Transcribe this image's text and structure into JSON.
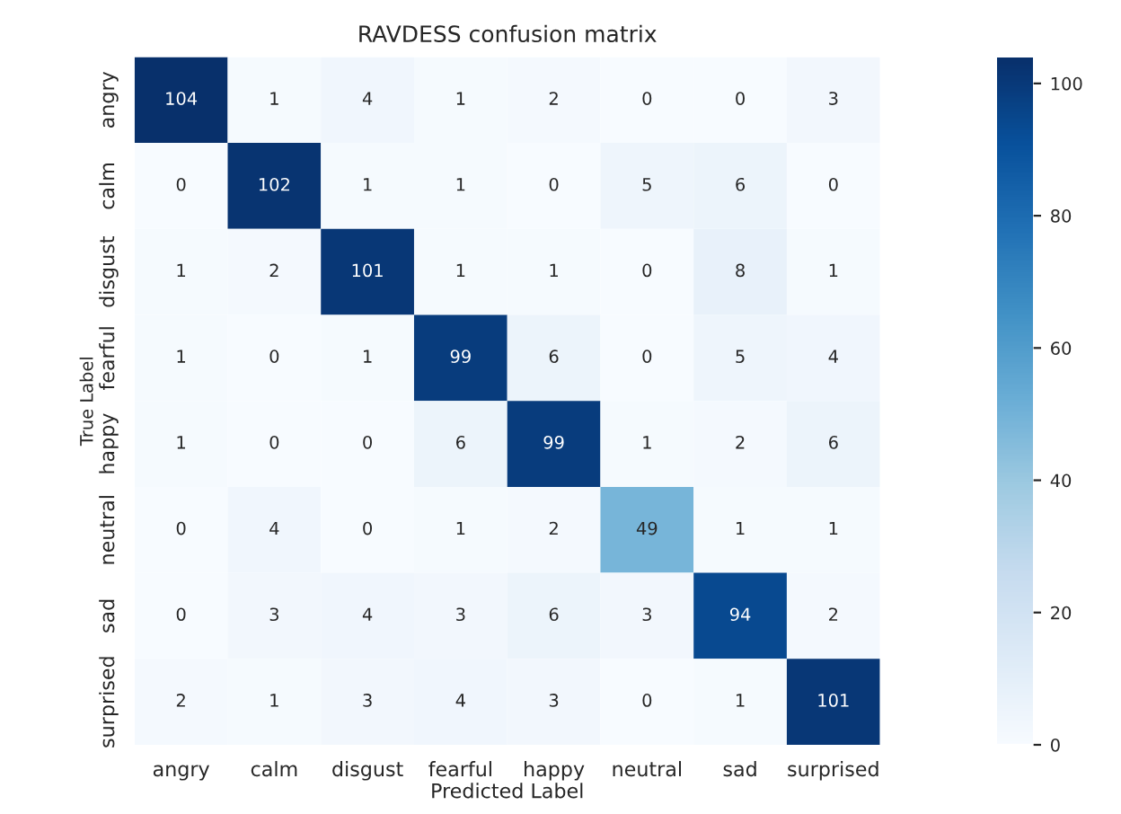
{
  "chart_data": {
    "type": "heatmap",
    "title": "RAVDESS confusion matrix",
    "xlabel": "Predicted Label",
    "ylabel": "True Label",
    "categories": [
      "angry",
      "calm",
      "disgust",
      "fearful",
      "happy",
      "neutral",
      "sad",
      "surprised"
    ],
    "y_categories": [
      "angry",
      "calm",
      "disgust",
      "fearful",
      "happy",
      "neutral",
      "sad",
      "surprised"
    ],
    "cells": [
      [
        104,
        1,
        4,
        1,
        2,
        0,
        0,
        3
      ],
      [
        0,
        102,
        1,
        1,
        0,
        5,
        6,
        0
      ],
      [
        1,
        2,
        101,
        1,
        1,
        0,
        8,
        1
      ],
      [
        1,
        0,
        1,
        99,
        6,
        0,
        5,
        4
      ],
      [
        1,
        0,
        0,
        6,
        99,
        1,
        2,
        6
      ],
      [
        0,
        4,
        0,
        1,
        2,
        49,
        1,
        1
      ],
      [
        0,
        3,
        4,
        3,
        6,
        3,
        94,
        2
      ],
      [
        2,
        1,
        3,
        4,
        3,
        0,
        1,
        101
      ]
    ],
    "clim": [
      0,
      104
    ],
    "cticks": [
      0,
      20,
      40,
      60,
      80,
      100
    ],
    "data_labels": true
  }
}
